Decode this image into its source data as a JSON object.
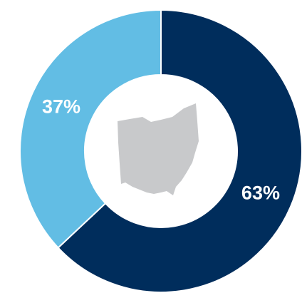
{
  "chart_data": {
    "type": "pie",
    "donut": true,
    "categories": [
      null,
      null
    ],
    "values": [
      63,
      37
    ],
    "value_labels": [
      "63%",
      "37%"
    ],
    "colors": [
      "#002d5c",
      "#62bde4"
    ]
  }
}
